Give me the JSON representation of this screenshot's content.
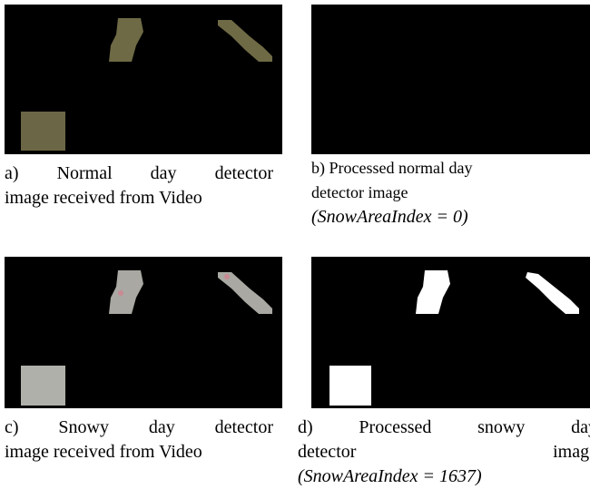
{
  "panels": [
    {
      "caption_lines": [
        "a) Normal day detector",
        "image received from Video"
      ]
    },
    {
      "caption_lines": [
        "b) Processed normal day",
        "detector image"
      ],
      "index": "(SnowAreaIndex = 0)"
    },
    {
      "caption_lines": [
        "c) Snowy day detector",
        "image received from Video"
      ]
    },
    {
      "caption_lines": [
        "d) Processed snowy day",
        "detector image"
      ],
      "index": "(SnowAreaIndex = 1637)"
    }
  ]
}
